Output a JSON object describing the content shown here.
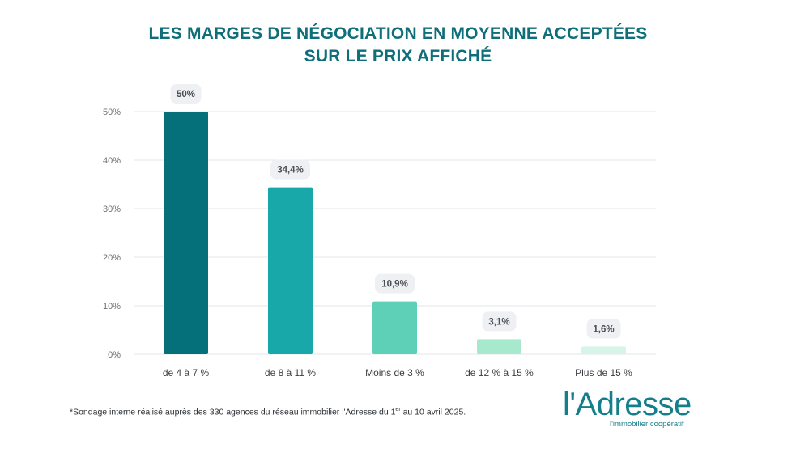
{
  "chart_data": {
    "type": "bar",
    "title_line1": "LES MARGES DE NÉGOCIATION EN MOYENNE ACCEPTÉES",
    "title_line2": "SUR LE PRIX AFFICHÉ",
    "categories": [
      "de 4 à 7 %",
      "de 8 à 11 %",
      "Moins de 3 %",
      "de 12 % à 15 %",
      "Plus de 15 %"
    ],
    "values": [
      50,
      34.4,
      10.9,
      3.1,
      1.6
    ],
    "data_labels": [
      "50%",
      "34,4%",
      "10,9%",
      "3,1%",
      "1,6%"
    ],
    "colors": [
      "#05707a",
      "#18a8aa",
      "#5fd0b8",
      "#a6e9cc",
      "#d6f4e8"
    ],
    "ylim": [
      0,
      50
    ],
    "yticks": [
      0,
      10,
      20,
      30,
      40,
      50
    ],
    "ytick_labels": [
      "0%",
      "10%",
      "20%",
      "30%",
      "40%",
      "50%"
    ],
    "grid": true,
    "xlabel": "",
    "ylabel": ""
  },
  "footnote": {
    "before": "*Sondage interne réalisé auprès des 330 agences du réseau immobilier l'Adresse du 1",
    "sup": "er",
    "after": " au 10 avril 2025."
  },
  "logo": {
    "main": "l'Adresse",
    "tagline": "l'immobilier coopératif",
    "color": "#147f8a"
  },
  "colors": {
    "title": "#0e6e79",
    "grid": "#e3e6ea",
    "label_bg": "#eef0f3"
  }
}
